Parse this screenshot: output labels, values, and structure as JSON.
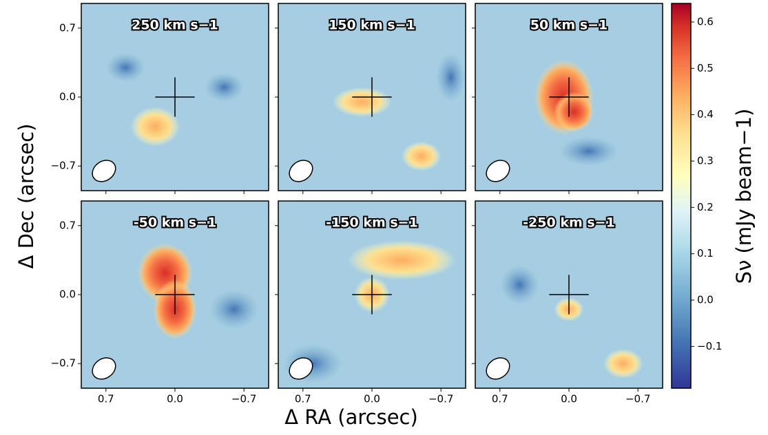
{
  "chart_data": {
    "type": "channel-maps",
    "xlabel": "Δ RA (arcsec)",
    "ylabel": "Δ Dec (arcsec)",
    "panels": [
      "250 km s−1",
      "150 km s−1",
      "50 km s−1",
      "-50 km s−1",
      "-150 km s−1",
      "-250 km s−1"
    ],
    "xlim": [
      0.95,
      -0.95
    ],
    "ylim": [
      -0.95,
      0.95
    ],
    "xticks": [
      0.7,
      {
        "value": 0,
        "label": "0.0"
      },
      {
        "value": -0.7,
        "label": "−0.7"
      }
    ],
    "yticks": [
      0.7,
      {
        "value": 0,
        "label": "0.0"
      },
      {
        "value": -0.7,
        "label": "−0.7"
      }
    ],
    "colorbar": {
      "label": "Sν (mJy beam−1)",
      "lim": [
        -0.19,
        0.64
      ],
      "ticks": [
        {
          "value": -0.1,
          "label": "−0.1"
        },
        {
          "value": 0,
          "label": "0.0"
        },
        0.1,
        0.2,
        0.3,
        0.4,
        0.5,
        0.6
      ]
    }
  }
}
